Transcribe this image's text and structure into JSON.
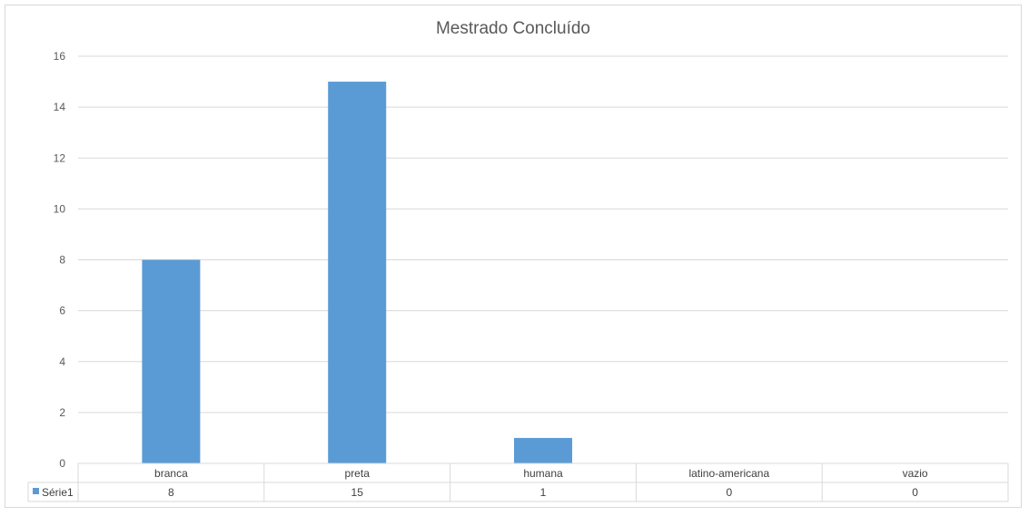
{
  "chart_data": {
    "type": "bar",
    "title": "Mestrado Concluído",
    "categories": [
      "branca",
      "preta",
      "humana",
      "latino-americana",
      "vazio"
    ],
    "series": [
      {
        "name": "Série1",
        "values": [
          8,
          15,
          1,
          0,
          0
        ],
        "color": "#5b9bd5"
      }
    ],
    "ylim": [
      0,
      16
    ],
    "yticks": [
      "0",
      "2",
      "4",
      "6",
      "8",
      "10",
      "12",
      "14",
      "16"
    ],
    "grid": true,
    "legend": "data-table",
    "data_table": true
  }
}
